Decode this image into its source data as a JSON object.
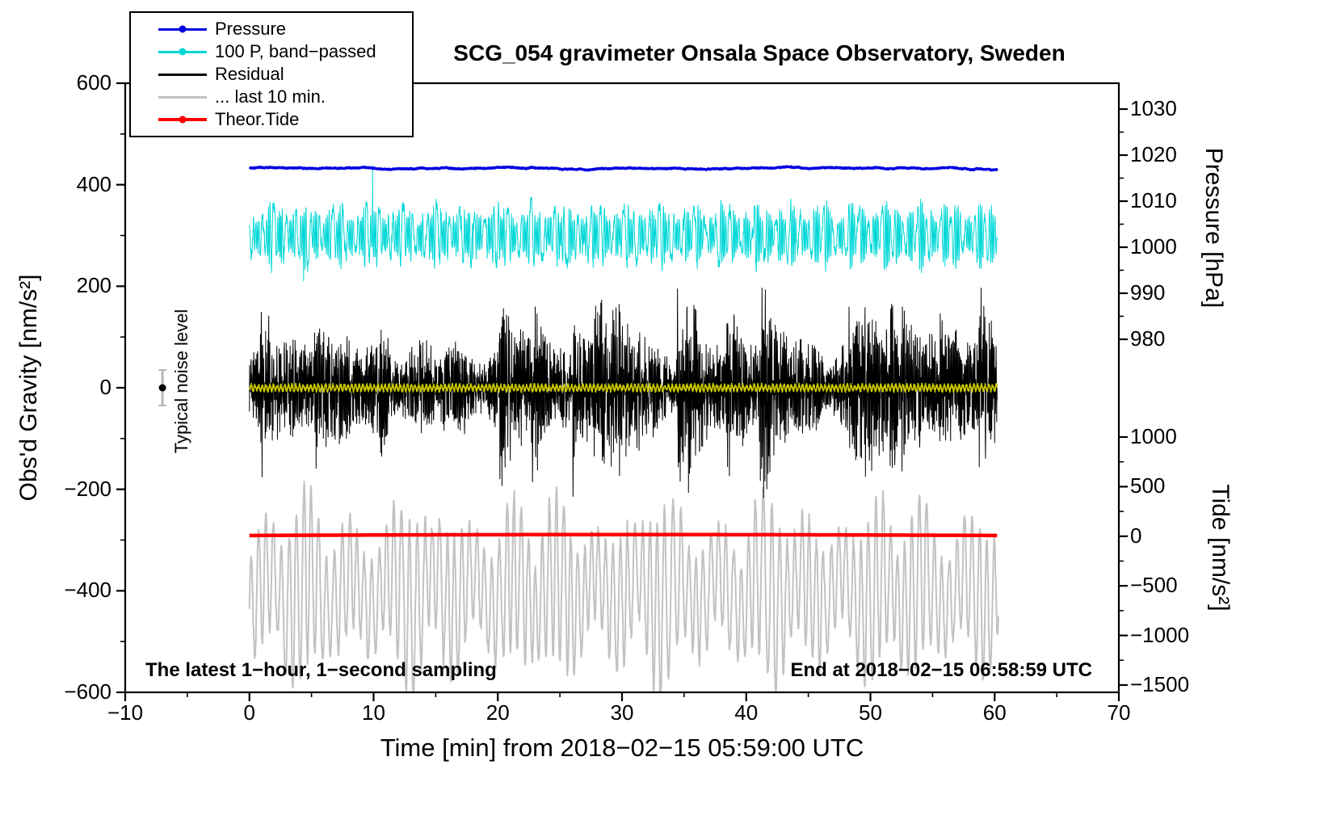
{
  "title": "SCG_054 gravimeter Onsala Space Observatory, Sweden",
  "axes": {
    "left": {
      "label": "Obs'd Gravity [nm/s²]",
      "ticks": [
        600,
        400,
        200,
        0,
        -200,
        -400,
        -600
      ],
      "minor_step": 100,
      "range": [
        -600,
        600
      ]
    },
    "bottom": {
      "label": "Time [min] from 2018−02−15 05:59:00 UTC",
      "ticks": [
        -10,
        0,
        10,
        20,
        30,
        40,
        50,
        60,
        70
      ],
      "minor_step": 5,
      "range": [
        -10,
        70
      ]
    },
    "right_pressure": {
      "label": "Pressure [hPa]",
      "ticks": [
        1030,
        1020,
        1010,
        1000,
        990,
        980
      ]
    },
    "right_tide": {
      "label": "Tide [nm/s²]",
      "ticks": [
        1000,
        500,
        0,
        -500,
        -1000,
        -1500
      ]
    }
  },
  "legend": [
    {
      "label": "Pressure",
      "color": "#0000e0",
      "marker": true
    },
    {
      "label": "100 P, band−passed",
      "color": "#00d7d7",
      "marker": true
    },
    {
      "label": "Residual",
      "color": "#000000",
      "marker": false
    },
    {
      "label": "... last 10 min.",
      "color": "#c2c2c2",
      "marker": false
    },
    {
      "label": "Theor.Tide",
      "color": "#ff0000",
      "marker": true
    }
  ],
  "annotations": {
    "noise_label": "Typical noise level",
    "sampling_note": "The latest 1−hour, 1−second sampling",
    "end_note": "End at 2018−02−15 06:58:59 UTC"
  },
  "chart_data": {
    "type": "line",
    "title": "SCG_054 gravimeter Onsala Space Observatory, Sweden",
    "xlabel": "Time [min] from 2018−02−15 05:59:00 UTC",
    "x_axis_range_min": [
      -10,
      70
    ],
    "x_data_range_min": [
      0,
      60.2
    ],
    "sampling": "1-second",
    "left_axis": {
      "label": "Obs'd Gravity [nm/s²]",
      "range": [
        -600,
        600
      ]
    },
    "right_axes": [
      {
        "label": "Pressure [hPa]",
        "ticks": [
          1030,
          1020,
          1010,
          1000,
          990,
          980
        ]
      },
      {
        "label": "Tide [nm/s²]",
        "ticks": [
          1000,
          500,
          0,
          -500,
          -1000,
          -1500
        ]
      }
    ],
    "series": [
      {
        "name": "Pressure",
        "color": "#0000e0",
        "axis": "right_pressure",
        "approx_value_hPa": 1017,
        "gravity_baseline": 434,
        "noise_amplitude": 3,
        "style": "thick nearly-flat line"
      },
      {
        "name": "100 P, band-passed",
        "color": "#00d7d7",
        "axis": "left",
        "baseline": 300,
        "envelope": [
          26,
          66
        ],
        "extremes": [
          165,
          420
        ],
        "description": "band-passed pressure scaled x100, high-frequency oscillation"
      },
      {
        "name": "Residual",
        "color": "#000000",
        "axis": "left",
        "baseline": 0,
        "envelope": [
          40,
          160
        ],
        "extremes": [
          -260,
          245
        ],
        "description": "high-frequency residual gravity noise band centred on 0"
      },
      {
        "name": "Residual smoothed",
        "color": "#c8c800",
        "axis": "left",
        "baseline": 0,
        "envelope": [
          0,
          10
        ],
        "description": "low-amplitude yellow trace overlaid on residual at 0"
      },
      {
        "name": "... last 10 min.",
        "color": "#c2c2c2",
        "axis": "left",
        "baseline": -400,
        "envelope": [
          60,
          240
        ],
        "extremes": [
          -630,
          -150
        ],
        "description": "last 10 minutes of residual, rescaled, large oscillation"
      },
      {
        "name": "Theor.Tide",
        "color": "#ff0000",
        "axis": "right_tide",
        "tide_value": 0,
        "gravity_baseline": -291,
        "style": "very thick flat line at tide = 0"
      }
    ],
    "noise_marker": {
      "x_min": -7,
      "gravity": 0,
      "error": 35
    }
  }
}
